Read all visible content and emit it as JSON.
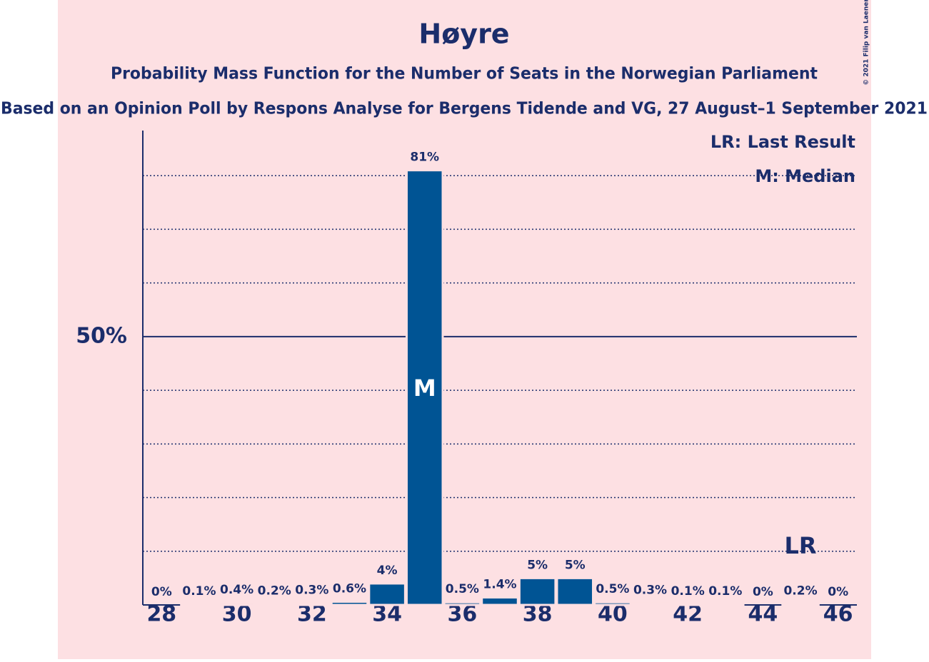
{
  "chart_data": {
    "type": "bar",
    "title": "Høyre",
    "subtitles": [
      "Probability Mass Function for the Number of Seats in the Norwegian Parliament",
      "Based on an Opinion Poll by Respons Analyse for Bergens Tidende and VG, 27 August–1 September 2021"
    ],
    "copyright": "© 2021 Filip van Laenen",
    "x": [
      28,
      29,
      30,
      31,
      32,
      33,
      34,
      35,
      36,
      37,
      38,
      39,
      40,
      41,
      42,
      43,
      44,
      45,
      46
    ],
    "values": [
      0,
      0.1,
      0.4,
      0.2,
      0.3,
      0.6,
      4,
      81,
      0.5,
      1.4,
      5,
      5,
      0.5,
      0.3,
      0.1,
      0.1,
      0,
      0.2,
      0
    ],
    "value_labels": [
      "0%",
      "0.1%",
      "0.4%",
      "0.2%",
      "0.3%",
      "0.6%",
      "4%",
      "81%",
      "0.5%",
      "1.4%",
      "5%",
      "5%",
      "0.5%",
      "0.3%",
      "0.1%",
      "0.1%",
      "0%",
      "0.2%",
      "0%"
    ],
    "color": "#005494",
    "xlim": [
      27.5,
      46.5
    ],
    "xticks": [
      28,
      30,
      32,
      34,
      36,
      38,
      40,
      42,
      44,
      46
    ],
    "ylim": [
      0,
      88.4
    ],
    "yticks": [
      {
        "value": 50,
        "label": "50%"
      }
    ],
    "y_gridlines": [
      10,
      20,
      30,
      40,
      60,
      70,
      80
    ],
    "annotations": [
      {
        "text": "M",
        "x": 35
      },
      {
        "text": "LR",
        "x": 45
      }
    ],
    "legend": [
      "LR: Last Result",
      "M: Median"
    ]
  }
}
